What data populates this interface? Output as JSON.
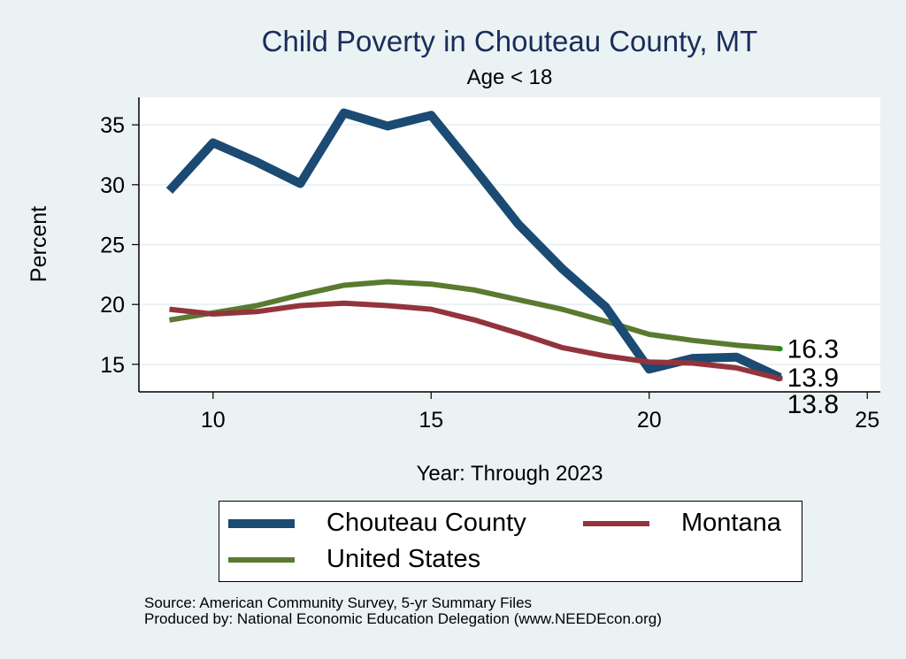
{
  "chart_data": {
    "type": "line",
    "title": "Child Poverty in Chouteau County, MT",
    "subtitle": "Age < 18",
    "xlabel": "Year: Through 2023",
    "ylabel": "Percent",
    "xlim": [
      8.3,
      25.3
    ],
    "ylim": [
      12.7,
      37.3
    ],
    "xticks": [
      10,
      15,
      20,
      25
    ],
    "yticks": [
      15,
      20,
      25,
      30,
      35
    ],
    "grid": true,
    "legend_position": "bottom",
    "x": [
      9,
      10,
      11,
      12,
      13,
      14,
      15,
      16,
      17,
      18,
      19,
      20,
      21,
      22,
      23
    ],
    "series": [
      {
        "name": "Chouteau County",
        "color": "#1b4a73",
        "values": [
          29.5,
          33.5,
          31.9,
          30.1,
          36.0,
          34.9,
          35.8,
          31.3,
          26.7,
          23.0,
          19.8,
          14.6,
          15.5,
          15.6,
          13.9
        ],
        "end_label": "13.9"
      },
      {
        "name": "Montana",
        "color": "#93343c",
        "values": [
          19.6,
          19.2,
          19.4,
          19.9,
          20.1,
          19.9,
          19.6,
          18.7,
          17.6,
          16.4,
          15.7,
          15.2,
          15.1,
          14.7,
          13.8
        ],
        "end_label": "13.8"
      },
      {
        "name": "United States",
        "color": "#5a7a30",
        "values": [
          18.7,
          19.3,
          19.9,
          20.8,
          21.6,
          21.9,
          21.7,
          21.2,
          20.4,
          19.6,
          18.6,
          17.5,
          17.0,
          16.6,
          16.3
        ],
        "end_label": "16.3"
      }
    ],
    "source_lines": [
      "Source: American Community Survey, 5-yr Summary Files",
      "Produced by: National Economic Education Delegation (www.NEEDEcon.org)"
    ]
  }
}
